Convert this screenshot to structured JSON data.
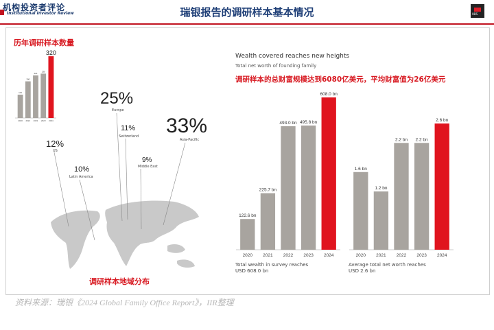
{
  "header": {
    "logo_cn": "机构投资者评论",
    "logo_en": "Institutional Investor Review",
    "title": "瑞银报告的调研样本基本情况",
    "brand_tag": "UBS"
  },
  "left": {
    "sample_title": "历年调研样本数量",
    "map_title": "调研样本地域分布",
    "regions": [
      {
        "pct": "25%",
        "name": "Europe"
      },
      {
        "pct": "11%",
        "name": "Switzerland"
      },
      {
        "pct": "33%",
        "name": "Asia-Pacific"
      },
      {
        "pct": "12%",
        "name": "US"
      },
      {
        "pct": "10%",
        "name": "Latin America"
      },
      {
        "pct": "9%",
        "name": "Middle East"
      }
    ]
  },
  "right": {
    "en_title": "Wealth covered reaches new heights",
    "en_subtitle": "Total net worth of founding family",
    "cn_subtitle": "调研样本的总财富规模达到6080亿美元，平均财富值为26亿美元",
    "caption_total_1": "Total wealth in survey reaches",
    "caption_total_2": "USD 608.0 bn",
    "caption_avg_1": "Average total net worth reaches",
    "caption_avg_2": "USD 2.6 bn"
  },
  "source": "资料来源：瑞银《2024 Global Family Office Report》，IIR整理",
  "colors": {
    "grey": "#a8a49f",
    "red": "#e0141e",
    "title_blue": "#1f3f77"
  },
  "chart_data": [
    {
      "type": "bar",
      "title": "历年调研样本数量",
      "categories": [
        "2020",
        "2021",
        "2022",
        "2023",
        "2024"
      ],
      "values": [
        121,
        190,
        221,
        230,
        320
      ],
      "labels": [
        "121",
        "190",
        "221",
        "230",
        "320"
      ],
      "highlight_index": 4,
      "ylim": [
        0,
        320
      ]
    },
    {
      "type": "bar",
      "title": "Wealth covered reaches new heights",
      "subtitle": "Total net worth of founding family",
      "categories": [
        "2020",
        "2021",
        "2022",
        "2023",
        "2024"
      ],
      "values": [
        122.6,
        225.7,
        493.0,
        495.8,
        608.0
      ],
      "labels": [
        "122.6 bn",
        "225.7 bn",
        "493.0 bn",
        "495.8 bn",
        "608.0 bn"
      ],
      "highlight_index": 4,
      "ylim": [
        0,
        608.0
      ]
    },
    {
      "type": "bar",
      "categories": [
        "2020",
        "2021",
        "2022",
        "2023",
        "2024"
      ],
      "values": [
        1.6,
        1.2,
        2.2,
        2.2,
        2.6
      ],
      "labels": [
        "1.6 bn",
        "1.2 bn",
        "2.2 bn",
        "2.2 bn",
        "2.6 bn"
      ],
      "highlight_index": 4,
      "ylim": [
        0,
        2.6
      ]
    }
  ]
}
